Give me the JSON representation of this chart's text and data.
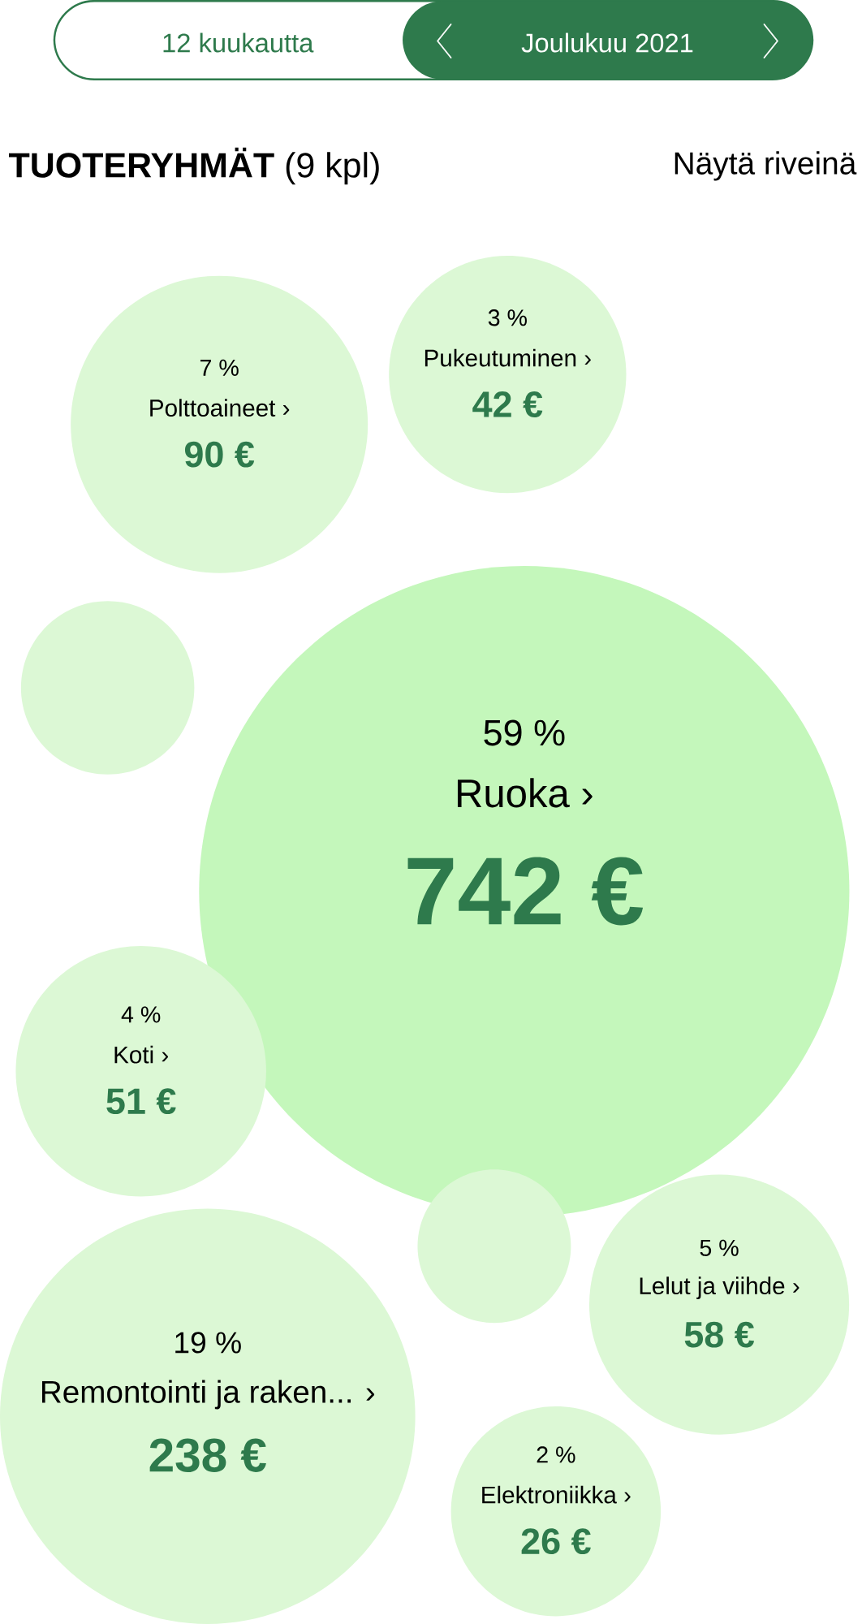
{
  "chart_data": {
    "type": "other",
    "title": "**TUOTERYHMÄT** (9 kpl)",
    "categories": [
      "Pukeutuminen ›",
      "Polttoaineet ›",
      null,
      "Ruoka ›",
      "Koti ›",
      null,
      "Lelut ja viihde ›",
      "Remontointi ja raken... ›",
      "Elektroniikka ›"
    ],
    "values": [
      42,
      90,
      null,
      742,
      51,
      null,
      58,
      238,
      26
    ],
    "value_labels": [
      "42 €",
      "90 €",
      null,
      "742 €",
      "51 €",
      null,
      "58 €",
      "238 €",
      "26 €"
    ],
    "colors": [
      "#dcf8d5",
      "#dcf8d5",
      "#dcf8d5",
      "#c4f7bb",
      "#dcf8d5",
      "#dcf8d5",
      "#dcf8d5",
      "#dcf8d5",
      "#dcf8d5"
    ],
    "annotations": [
      "12 kuukautta",
      "Joulukuu 2021",
      "Näytä riveinä",
      {
        "text": "3 %",
        "x": "Pukeutuminen ›"
      },
      {
        "text": "7 %",
        "x": "Polttoaineet ›"
      },
      {
        "text": "59 %",
        "x": "Ruoka ›"
      },
      {
        "text": "4 %",
        "x": "Koti ›"
      },
      {
        "text": "5 %",
        "x": "Lelut ja viihde ›"
      },
      {
        "text": "19 %",
        "x": "Remontointi ja raken... ›"
      },
      {
        "text": "2 %",
        "x": "Elektroniikka ›"
      }
    ]
  }
}
